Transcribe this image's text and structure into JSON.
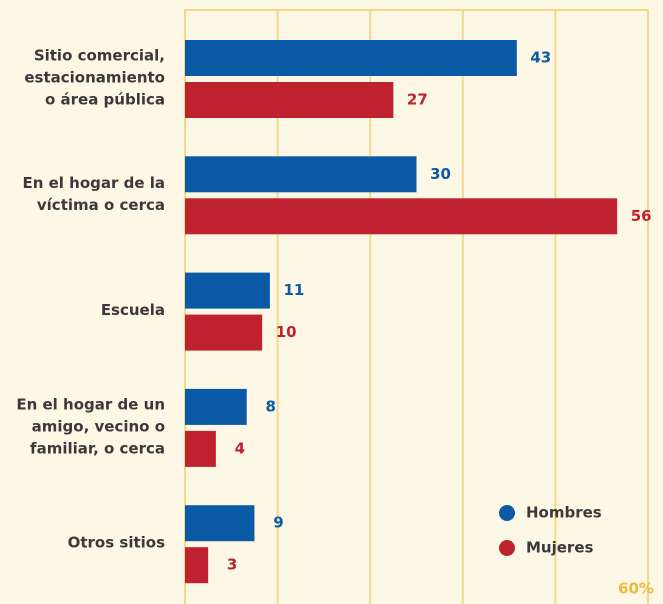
{
  "chart_data": {
    "type": "bar",
    "orientation": "horizontal",
    "categories": [
      [
        "Sitio comercial,",
        "estacionamiento",
        "o área pública"
      ],
      [
        "En el hogar de la",
        "víctima o cerca"
      ],
      [
        "Escuela"
      ],
      [
        "En el hogar de un",
        "amigo, vecino o",
        "familiar, o cerca"
      ],
      [
        "Otros sitios"
      ]
    ],
    "series": [
      {
        "name": "Hombres",
        "color": "#0b5aa6",
        "values": [
          43,
          30,
          11,
          8,
          9
        ]
      },
      {
        "name": "Mujeres",
        "color": "#c0212f",
        "values": [
          27,
          56,
          10,
          4,
          3
        ]
      }
    ],
    "xlim": [
      0,
      60
    ],
    "xticks": [
      0,
      12,
      24,
      36,
      48,
      {
        "value": 60,
        "label": "60%"
      }
    ],
    "grid": true,
    "legend": "bottom-right"
  }
}
